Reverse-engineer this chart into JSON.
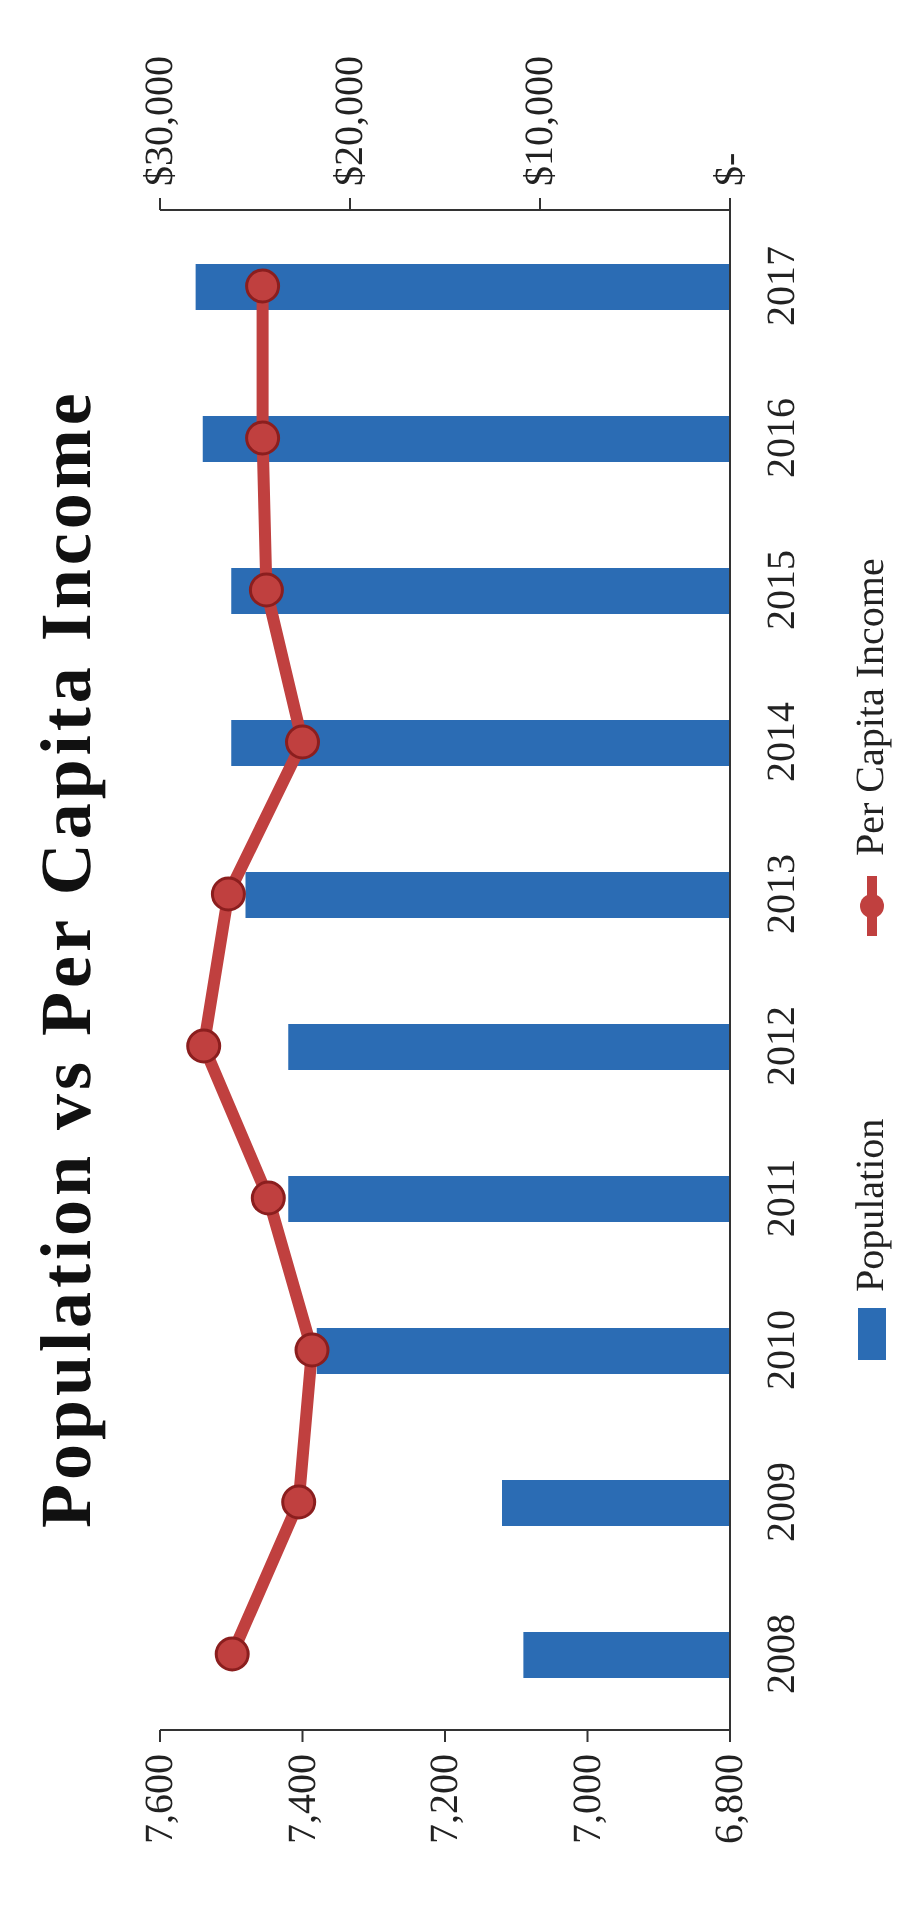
{
  "chart_data": {
    "type": "bar",
    "orientation": "horizontal",
    "title": "Population vs Per Capita Income",
    "categories": [
      "2017",
      "2016",
      "2015",
      "2014",
      "2013",
      "2012",
      "2011",
      "2010",
      "2009",
      "2008"
    ],
    "series": [
      {
        "name": "Population",
        "color": "#2b6cb4",
        "values": [
          7550,
          7540,
          7500,
          7500,
          7480,
          7420,
          7420,
          7380,
          7120,
          7090
        ]
      },
      {
        "name": "Per Capita Income",
        "type": "line",
        "axis": "x2",
        "color": "#c0403f",
        "values": [
          24600,
          24600,
          24400,
          22500,
          26400,
          27700,
          24300,
          22000,
          22700,
          26200
        ]
      }
    ],
    "xlim": [
      7600,
      6800
    ],
    "xticks": [
      {
        "value": 6800,
        "label": "6,800"
      },
      {
        "value": 7000,
        "label": "7,000"
      },
      {
        "value": 7200,
        "label": "7,200"
      },
      {
        "value": 7400,
        "label": "7,400"
      },
      {
        "value": 7600,
        "label": "7,600"
      }
    ],
    "x2lim": [
      30000,
      0
    ],
    "x2ticks": [
      {
        "value": 0,
        "label": "$-"
      },
      {
        "value": 10000,
        "label": "$10,000"
      },
      {
        "value": 20000,
        "label": "$20,000"
      },
      {
        "value": 30000,
        "label": "$30,000"
      }
    ],
    "marker": "circle",
    "legend": "right",
    "grid": false
  }
}
